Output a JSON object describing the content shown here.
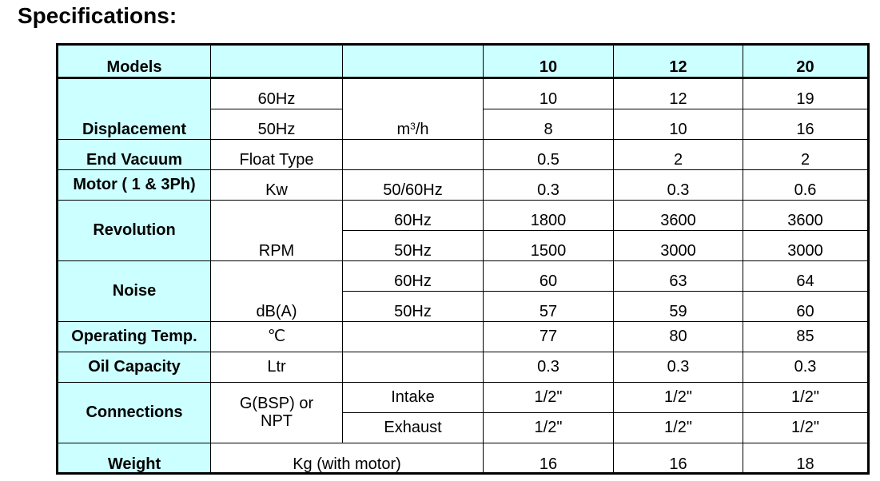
{
  "title": "Specifications:",
  "table": {
    "header": {
      "label": "Models",
      "models": [
        "10",
        "12",
        "20"
      ]
    },
    "displacement": {
      "label": "Displacement",
      "unit": "m",
      "unit_sup": "3",
      "unit_suffix": "/h",
      "r60": {
        "cond": "60Hz",
        "values": [
          "10",
          "12",
          "19"
        ]
      },
      "r50": {
        "cond": "50Hz",
        "values": [
          "8",
          "10",
          "16"
        ]
      }
    },
    "end_vacuum": {
      "label": "End Vacuum",
      "type": "Float Type",
      "values": [
        "0.5",
        "2",
        "2"
      ]
    },
    "motor": {
      "label": "Motor ( 1 & 3Ph)",
      "unit": "Kw",
      "cond": "50/60Hz",
      "values": [
        "0.3",
        "0.3",
        "0.6"
      ]
    },
    "revolution": {
      "label": "Revolution",
      "unit": "RPM",
      "r60": {
        "cond": "60Hz",
        "values": [
          "1800",
          "3600",
          "3600"
        ]
      },
      "r50": {
        "cond": "50Hz",
        "values": [
          "1500",
          "3000",
          "3000"
        ]
      }
    },
    "noise": {
      "label": "Noise",
      "unit": "dB(A)",
      "r60": {
        "cond": "60Hz",
        "values": [
          "60",
          "63",
          "64"
        ]
      },
      "r50": {
        "cond": "50Hz",
        "values": [
          "57",
          "59",
          "60"
        ]
      }
    },
    "temp": {
      "label": "Operating Temp.",
      "unit": "℃",
      "values": [
        "77",
        "80",
        "85"
      ]
    },
    "oil": {
      "label": "Oil Capacity",
      "unit": "Ltr",
      "values": [
        "0.3",
        "0.3",
        "0.3"
      ]
    },
    "connections": {
      "label": "Connections",
      "unit_line1": "G(BSP) or",
      "unit_line2": "NPT",
      "intake": {
        "cond": "Intake",
        "values": [
          "1/2\"",
          "1/2\"",
          "1/2\""
        ]
      },
      "exhaust": {
        "cond": "Exhaust",
        "values": [
          "1/2\"",
          "1/2\"",
          "1/2\""
        ]
      }
    },
    "weight": {
      "label": "Weight",
      "unit": "Kg (with motor)",
      "values": [
        "16",
        "16",
        "18"
      ]
    }
  }
}
